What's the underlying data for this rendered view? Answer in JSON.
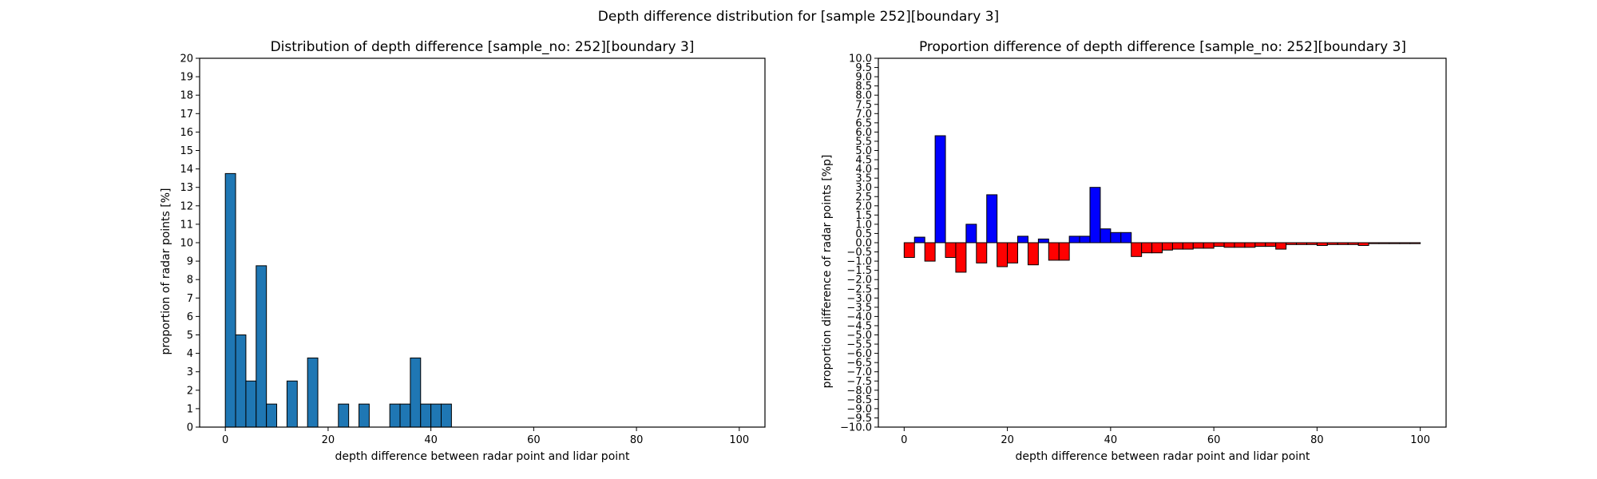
{
  "figure": {
    "suptitle": "Depth difference distribution for [sample 252][boundary 3]"
  },
  "chart_data": [
    {
      "type": "bar",
      "title": "Distribution of depth difference [sample_no: 252][boundary 3]",
      "xlabel": "depth difference between radar point and lidar point",
      "ylabel": "proportion of radar points [%]",
      "xlim": [
        -5,
        105
      ],
      "ylim": [
        0,
        20
      ],
      "xticks": [
        0,
        20,
        40,
        60,
        80,
        100
      ],
      "yticks": [
        0,
        1,
        2,
        3,
        4,
        5,
        6,
        7,
        8,
        9,
        10,
        11,
        12,
        13,
        14,
        15,
        16,
        17,
        18,
        19,
        20
      ],
      "bin_width": 2,
      "color": "#1f77b4",
      "edgecolor": "#000000",
      "bins": [
        {
          "x": 1,
          "value": 13.75
        },
        {
          "x": 3,
          "value": 5.0
        },
        {
          "x": 5,
          "value": 2.5
        },
        {
          "x": 7,
          "value": 8.75
        },
        {
          "x": 9,
          "value": 1.25
        },
        {
          "x": 13,
          "value": 2.5
        },
        {
          "x": 17,
          "value": 3.75
        },
        {
          "x": 23,
          "value": 1.25
        },
        {
          "x": 27,
          "value": 1.25
        },
        {
          "x": 33,
          "value": 1.25
        },
        {
          "x": 35,
          "value": 1.25
        },
        {
          "x": 37,
          "value": 3.75
        },
        {
          "x": 39,
          "value": 1.25
        },
        {
          "x": 41,
          "value": 1.25
        },
        {
          "x": 43,
          "value": 1.25
        }
      ]
    },
    {
      "type": "bar",
      "title": "Proportion difference of depth difference [sample_no: 252][boundary 3]",
      "xlabel": "depth difference between radar point and lidar point",
      "ylabel": "proportion difference of radar points [%p]",
      "xlim": [
        -5,
        105
      ],
      "ylim": [
        -10,
        10
      ],
      "xticks": [
        0,
        20,
        40,
        60,
        80,
        100
      ],
      "ytick_step": 0.5,
      "bin_width": 2,
      "positive_color": "#0000ff",
      "negative_color": "#ff0000",
      "edgecolor": "#000000",
      "bins": [
        {
          "x": 1,
          "value": -0.8
        },
        {
          "x": 3,
          "value": 0.3
        },
        {
          "x": 5,
          "value": -1.0
        },
        {
          "x": 7,
          "value": 5.8
        },
        {
          "x": 9,
          "value": -0.8
        },
        {
          "x": 11,
          "value": -1.6
        },
        {
          "x": 13,
          "value": 1.0
        },
        {
          "x": 15,
          "value": -1.1
        },
        {
          "x": 17,
          "value": 2.6
        },
        {
          "x": 19,
          "value": -1.3
        },
        {
          "x": 21,
          "value": -1.1
        },
        {
          "x": 23,
          "value": 0.35
        },
        {
          "x": 25,
          "value": -1.2
        },
        {
          "x": 27,
          "value": 0.2
        },
        {
          "x": 29,
          "value": -0.95
        },
        {
          "x": 31,
          "value": -0.95
        },
        {
          "x": 33,
          "value": 0.35
        },
        {
          "x": 35,
          "value": 0.35
        },
        {
          "x": 37,
          "value": 3.0
        },
        {
          "x": 39,
          "value": 0.75
        },
        {
          "x": 41,
          "value": 0.55
        },
        {
          "x": 43,
          "value": 0.55
        },
        {
          "x": 45,
          "value": -0.75
        },
        {
          "x": 47,
          "value": -0.55
        },
        {
          "x": 49,
          "value": -0.55
        },
        {
          "x": 51,
          "value": -0.4
        },
        {
          "x": 53,
          "value": -0.35
        },
        {
          "x": 55,
          "value": -0.35
        },
        {
          "x": 57,
          "value": -0.3
        },
        {
          "x": 59,
          "value": -0.3
        },
        {
          "x": 61,
          "value": -0.2
        },
        {
          "x": 63,
          "value": -0.25
        },
        {
          "x": 65,
          "value": -0.25
        },
        {
          "x": 67,
          "value": -0.25
        },
        {
          "x": 69,
          "value": -0.2
        },
        {
          "x": 71,
          "value": -0.2
        },
        {
          "x": 73,
          "value": -0.35
        },
        {
          "x": 75,
          "value": -0.1
        },
        {
          "x": 77,
          "value": -0.1
        },
        {
          "x": 79,
          "value": -0.1
        },
        {
          "x": 81,
          "value": -0.15
        },
        {
          "x": 83,
          "value": -0.1
        },
        {
          "x": 85,
          "value": -0.1
        },
        {
          "x": 87,
          "value": -0.1
        },
        {
          "x": 89,
          "value": -0.15
        },
        {
          "x": 91,
          "value": -0.05
        },
        {
          "x": 93,
          "value": -0.05
        },
        {
          "x": 95,
          "value": -0.05
        },
        {
          "x": 97,
          "value": -0.05
        },
        {
          "x": 99,
          "value": -0.05
        }
      ]
    }
  ]
}
